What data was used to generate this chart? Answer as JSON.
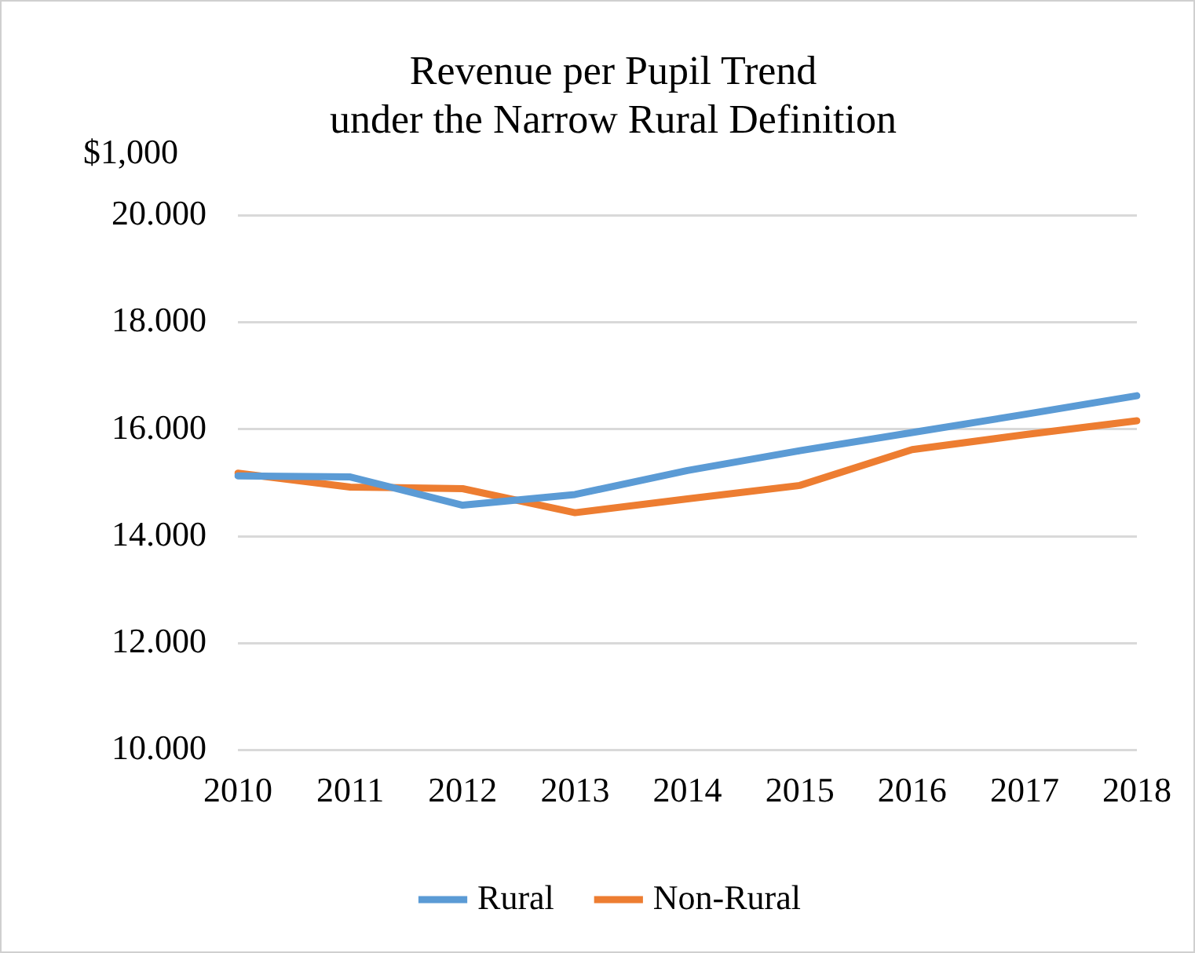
{
  "chart_data": {
    "type": "line",
    "title": "Revenue per Pupil Trend\nunder the Narrow Rural Definition",
    "ylabel": "$1,000",
    "categories": [
      "2010",
      "2011",
      "2012",
      "2013",
      "2014",
      "2015",
      "2016",
      "2017",
      "2018"
    ],
    "series": [
      {
        "name": "Rural",
        "color": "#5b9bd5",
        "values": [
          15.13,
          15.11,
          14.58,
          14.78,
          15.23,
          15.6,
          15.94,
          16.28,
          16.63
        ]
      },
      {
        "name": "Non-Rural",
        "color": "#ed7d31",
        "values": [
          15.18,
          14.92,
          14.89,
          14.44,
          14.7,
          14.95,
          15.62,
          15.9,
          16.16
        ]
      }
    ],
    "ylim": [
      10,
      20
    ],
    "yticks": [
      {
        "value": 10,
        "label": "10.000"
      },
      {
        "value": 12,
        "label": "12.000"
      },
      {
        "value": 14,
        "label": "14.000"
      },
      {
        "value": 16,
        "label": "16.000"
      },
      {
        "value": 18,
        "label": "18.000"
      },
      {
        "value": 20,
        "label": "20.000"
      }
    ],
    "grid": "y",
    "legend": "bottom",
    "marker": "none",
    "line_style": "solid"
  }
}
